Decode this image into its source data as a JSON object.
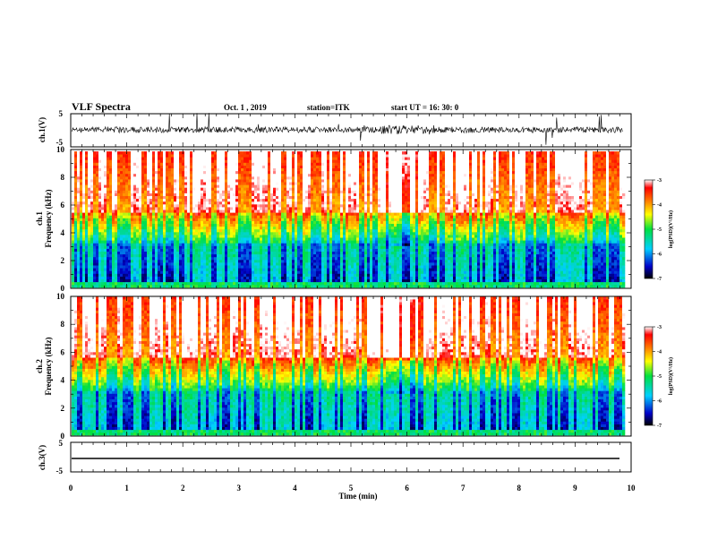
{
  "header": {
    "title": "VLF Spectra",
    "date": "Oct. 1 , 2019",
    "station": "station=ITK",
    "start_ut": "start UT =  16: 30: 0"
  },
  "chart_data": [
    {
      "type": "line",
      "panel": "ch1-waveform",
      "ylabel": "ch.1(V)",
      "ylim": [
        -5,
        5
      ],
      "yticks": [
        "5",
        "-5"
      ],
      "xlim": [
        0,
        10
      ]
    },
    {
      "type": "heatmap",
      "panel": "ch1-spectrogram",
      "ylabel_line1": "ch.1",
      "ylabel_line2": "Frequency (kHz)",
      "ylim": [
        0,
        10
      ],
      "yticks": [
        "0",
        "2",
        "4",
        "6",
        "8",
        "10"
      ],
      "xlim": [
        0,
        9.85
      ],
      "colorbar": {
        "label": "log(PSD)(V²/Hz)",
        "range": [
          -7,
          -3
        ],
        "ticks": [
          "-3",
          "-4",
          "-5",
          "-6",
          "-7"
        ]
      }
    },
    {
      "type": "heatmap",
      "panel": "ch2-spectrogram",
      "ylabel_line1": "ch.2",
      "ylabel_line2": "Frequency (kHz)",
      "ylim": [
        0,
        10
      ],
      "yticks": [
        "0",
        "2",
        "4",
        "6",
        "8",
        "10"
      ],
      "xlim": [
        0,
        9.85
      ],
      "colorbar": {
        "label": "log(PSD)(V²/Hz)",
        "range": [
          -7,
          -3
        ],
        "ticks": [
          "-3",
          "-4",
          "-5",
          "-6",
          "-7"
        ]
      }
    },
    {
      "type": "line",
      "panel": "ch3-waveform",
      "ylabel": "ch.3(V)",
      "ylim": [
        -5,
        5
      ],
      "yticks": [
        "5",
        "-5"
      ],
      "xlim": [
        0,
        10
      ],
      "xlabel": "Time (min)",
      "xticks": [
        "0",
        "1",
        "2",
        "3",
        "4",
        "5",
        "6",
        "7",
        "8",
        "9",
        "10"
      ]
    }
  ]
}
